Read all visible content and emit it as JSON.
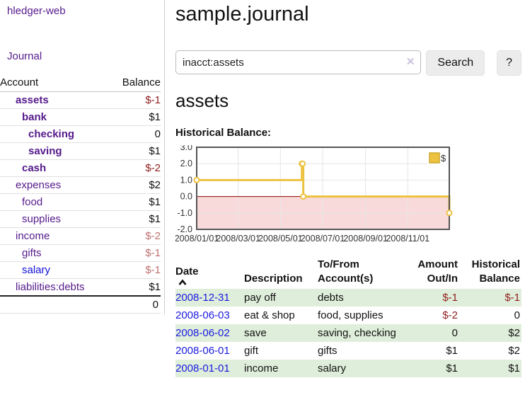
{
  "app": {
    "title": "hledger-web"
  },
  "sidebar": {
    "journal_link": "Journal",
    "accounts_table": {
      "account_header": "Account",
      "balance_header": "Balance",
      "rows": [
        {
          "name": "assets",
          "balance": "$-1",
          "depth": 1,
          "bold": true,
          "neg": "strong"
        },
        {
          "name": "bank",
          "balance": "$1",
          "depth": 2,
          "bold": true,
          "neg": "none"
        },
        {
          "name": "checking",
          "balance": "0",
          "depth": 3,
          "bold": true,
          "neg": "none"
        },
        {
          "name": "saving",
          "balance": "$1",
          "depth": 3,
          "bold": true,
          "neg": "none"
        },
        {
          "name": "cash",
          "balance": "$-2",
          "depth": 2,
          "bold": true,
          "neg": "strong"
        },
        {
          "name": "expenses",
          "balance": "$2",
          "depth": 1,
          "bold": false,
          "neg": "none"
        },
        {
          "name": "food",
          "balance": "$1",
          "depth": 2,
          "bold": false,
          "neg": "none"
        },
        {
          "name": "supplies",
          "balance": "$1",
          "depth": 2,
          "bold": false,
          "neg": "none"
        },
        {
          "name": "income",
          "balance": "$-2",
          "depth": 1,
          "bold": false,
          "neg": "faded"
        },
        {
          "name": "gifts",
          "balance": "$-1",
          "depth": 2,
          "bold": false,
          "neg": "faded"
        },
        {
          "name": "salary",
          "balance": "$-1",
          "depth": 2,
          "bold": false,
          "neg": "faded",
          "blue": true
        },
        {
          "name": "liabilities:debts",
          "balance": "$1",
          "depth": 1,
          "bold": false,
          "neg": "none"
        }
      ],
      "total": "0"
    }
  },
  "main": {
    "title": "sample.journal",
    "search": {
      "value": "inacct:assets",
      "clear_icon": "✕",
      "search_button": "Search",
      "help_button": "?"
    },
    "account_heading": "assets",
    "chart_label": "Historical Balance:"
  },
  "chart_data": {
    "type": "line",
    "title": "Historical Balance",
    "series": [
      {
        "name": "$",
        "color": "#EDC240",
        "step": true,
        "points": [
          [
            "2008-01-01",
            1
          ],
          [
            "2008-06-01",
            2
          ],
          [
            "2008-06-02",
            2
          ],
          [
            "2008-06-03",
            0
          ],
          [
            "2008-12-31",
            -1
          ]
        ]
      }
    ],
    "xlim": [
      "2008-01-01",
      "2008-12-31"
    ],
    "ylim": [
      -2,
      3
    ],
    "yticks": [
      3.0,
      2.0,
      1.0,
      0.0,
      -1.0,
      -2.0
    ],
    "xticks": [
      "2008/01/01",
      "2008/03/01",
      "2008/05/01",
      "2008/07/01",
      "2008/09/01",
      "2008/11/01"
    ],
    "legend": [
      "$"
    ],
    "legend_position": "top-right",
    "grid": true,
    "zero_line_color": "#8b0000",
    "negative_region_color": "#f9dada",
    "border_color": "#555555",
    "grid_color": "#e6e6e6"
  },
  "register": {
    "headers": {
      "date": "Date",
      "description": "Description",
      "accounts": "To/From Account(s)",
      "amount": "Amount Out/In",
      "balance": "Historical Balance"
    },
    "rows": [
      {
        "date": "2008-12-31",
        "description": "pay off",
        "accounts": "debts",
        "amount": "$-1",
        "amount_neg": true,
        "balance": "$-1",
        "balance_neg": true
      },
      {
        "date": "2008-06-03",
        "description": "eat & shop",
        "accounts": "food, supplies",
        "amount": "$-2",
        "amount_neg": true,
        "balance": "0",
        "balance_neg": false
      },
      {
        "date": "2008-06-02",
        "description": "save",
        "accounts": "saving, checking",
        "amount": "0",
        "amount_neg": false,
        "balance": "$2",
        "balance_neg": false
      },
      {
        "date": "2008-06-01",
        "description": "gift",
        "accounts": "gifts",
        "amount": "$1",
        "amount_neg": false,
        "balance": "$2",
        "balance_neg": false
      },
      {
        "date": "2008-01-01",
        "description": "income",
        "accounts": "salary",
        "amount": "$1",
        "amount_neg": false,
        "balance": "$1",
        "balance_neg": false
      }
    ]
  },
  "colors": {
    "link_purple": "#551a8b",
    "link_blue": "#1a1adf",
    "negative_strong": "#8f1d1d",
    "negative_faded": "#bf7171",
    "row_stripe_green": "#dfeeda",
    "series_yellow": "#EDC240"
  }
}
